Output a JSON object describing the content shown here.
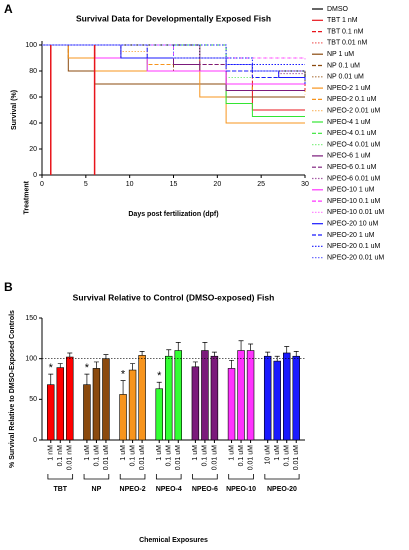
{
  "chart_data": [
    {
      "type": "line",
      "panel": "A",
      "title": "Survival Data for Developmentally Exposed Fish",
      "xlabel": "Days post fertilization (dpf)",
      "ylabel": "Survival (%)",
      "xlim": [
        0,
        30
      ],
      "xticks": [
        0,
        5,
        10,
        15,
        20,
        25,
        30
      ],
      "ylim": [
        0,
        100
      ],
      "yticks": [
        0,
        20,
        40,
        60,
        80,
        100
      ],
      "treatment": {
        "label": "Treatment",
        "x": [
          1,
          6
        ],
        "color": "#e8141b"
      },
      "step": true,
      "x": [
        0,
        3,
        6,
        9,
        12,
        15,
        18,
        21,
        24,
        27,
        30
      ],
      "series": [
        {
          "name": "DMSO",
          "color": "#000000",
          "style": "solid",
          "values": [
            100,
            100,
            100,
            100,
            100,
            100,
            90,
            85,
            80,
            80,
            72
          ]
        },
        {
          "name": "TBT 1 nM",
          "color": "#e8141b",
          "style": "solid",
          "values": [
            100,
            100,
            90,
            90,
            90,
            90,
            80,
            70,
            50,
            50,
            50
          ]
        },
        {
          "name": "TBT 0.1 nM",
          "color": "#e8141b",
          "style": "dashed",
          "values": [
            100,
            100,
            90,
            90,
            90,
            80,
            80,
            80,
            70,
            70,
            65
          ]
        },
        {
          "name": "TBT 0.01 nM",
          "color": "#f06a6a",
          "style": "dotted",
          "values": [
            100,
            100,
            100,
            90,
            90,
            90,
            90,
            80,
            80,
            75,
            75
          ]
        },
        {
          "name": "NP 1 uM",
          "color": "#8b4a0e",
          "style": "solid",
          "values": [
            100,
            80,
            70,
            70,
            70,
            70,
            70,
            60,
            60,
            60,
            60
          ]
        },
        {
          "name": "NP 0.1 uM",
          "color": "#8b4a0e",
          "style": "dashed",
          "values": [
            100,
            90,
            90,
            90,
            90,
            80,
            80,
            70,
            65,
            65,
            65
          ]
        },
        {
          "name": "NP 0.01 uM",
          "color": "#b07a45",
          "style": "dotted",
          "values": [
            100,
            100,
            90,
            90,
            90,
            90,
            85,
            80,
            75,
            75,
            70
          ]
        },
        {
          "name": "NPEO-2 1 uM",
          "color": "#f7941d",
          "style": "solid",
          "values": [
            100,
            90,
            80,
            80,
            80,
            80,
            60,
            40,
            40,
            40,
            40
          ]
        },
        {
          "name": "NPEO-2 0.1 uM",
          "color": "#f7941d",
          "style": "dashed",
          "values": [
            100,
            100,
            90,
            90,
            85,
            85,
            80,
            70,
            65,
            65,
            62
          ]
        },
        {
          "name": "NPEO-2 0.01 uM",
          "color": "#f9b865",
          "style": "dotted",
          "values": [
            100,
            100,
            100,
            95,
            90,
            90,
            85,
            80,
            80,
            80,
            78
          ]
        },
        {
          "name": "NPEO-4 1 uM",
          "color": "#33e533",
          "style": "solid",
          "values": [
            100,
            100,
            90,
            90,
            80,
            80,
            80,
            55,
            45,
            45,
            45
          ]
        },
        {
          "name": "NPEO-4 0.1 uM",
          "color": "#33e533",
          "style": "dashed",
          "values": [
            100,
            100,
            100,
            100,
            100,
            100,
            100,
            90,
            90,
            90,
            90
          ]
        },
        {
          "name": "NPEO-4 0.01 uM",
          "color": "#88f088",
          "style": "dotted",
          "values": [
            100,
            100,
            100,
            90,
            90,
            90,
            80,
            75,
            75,
            75,
            75
          ]
        },
        {
          "name": "NPEO-6 1 uM",
          "color": "#7b1a7b",
          "style": "solid",
          "values": [
            100,
            100,
            90,
            90,
            90,
            85,
            80,
            65,
            65,
            65,
            65
          ]
        },
        {
          "name": "NPEO-6 0.1 uM",
          "color": "#7b1a7b",
          "style": "dashed",
          "values": [
            100,
            100,
            100,
            90,
            90,
            90,
            85,
            85,
            80,
            80,
            80
          ]
        },
        {
          "name": "NPEO-6 0.01 uM",
          "color": "#a65ca6",
          "style": "dotted",
          "values": [
            100,
            100,
            100,
            100,
            90,
            90,
            90,
            80,
            80,
            78,
            78
          ]
        },
        {
          "name": "NPEO-10 1 uM",
          "color": "#ff33ff",
          "style": "solid",
          "values": [
            100,
            100,
            90,
            90,
            80,
            80,
            80,
            70,
            70,
            70,
            70
          ]
        },
        {
          "name": "NPEO-10 0.1 uM",
          "color": "#ff33ff",
          "style": "dashed",
          "values": [
            100,
            100,
            100,
            100,
            100,
            90,
            90,
            90,
            90,
            90,
            90
          ]
        },
        {
          "name": "NPEO-10 0.01 uM",
          "color": "#ff88ff",
          "style": "dotted",
          "values": [
            100,
            100,
            100,
            100,
            100,
            100,
            90,
            90,
            90,
            90,
            88
          ]
        },
        {
          "name": "NPEO-20 10 uM",
          "color": "#1a1aff",
          "style": "solid",
          "values": [
            100,
            100,
            100,
            90,
            90,
            90,
            90,
            85,
            80,
            75,
            75
          ]
        },
        {
          "name": "NPEO-20 1 uM",
          "color": "#1a1aff",
          "style": "dashed",
          "values": [
            100,
            100,
            100,
            100,
            90,
            90,
            90,
            80,
            75,
            75,
            70
          ]
        },
        {
          "name": "NPEO-20 0.1 uM",
          "color": "#1a1aff",
          "style": "dotted",
          "values": [
            100,
            100,
            100,
            100,
            100,
            100,
            100,
            90,
            85,
            85,
            85
          ]
        },
        {
          "name": "NPEO-20 0.01 uM",
          "color": "#7070ff",
          "style": "dotted",
          "values": [
            100,
            100,
            100,
            100,
            100,
            90,
            90,
            85,
            80,
            80,
            80
          ]
        }
      ]
    },
    {
      "type": "bar",
      "panel": "B",
      "title": "Survival Relative to Control (DMSO-exposed) Fish",
      "xlabel": "Chemical Exposures",
      "ylabel": "% Survival Relative to DMSO-Exposed Controls",
      "ylim": [
        0,
        150
      ],
      "yticks": [
        0,
        50,
        100,
        150
      ],
      "reference_line": 100,
      "groups": [
        {
          "name": "TBT",
          "color": "#ff0000",
          "categories": [
            "1 nM",
            "0.1 nM",
            "0.01 nM"
          ],
          "values": [
            68,
            89,
            102
          ],
          "errors": [
            13,
            5,
            5
          ],
          "markers": [
            "*",
            null,
            null
          ]
        },
        {
          "name": "NP",
          "color": "#8b4a0e",
          "categories": [
            "1 uM",
            "0.1 uM",
            "0.01 uM"
          ],
          "values": [
            68,
            88,
            100
          ],
          "errors": [
            13,
            8,
            5
          ],
          "markers": [
            "*",
            null,
            null
          ]
        },
        {
          "name": "NPEO-2",
          "color": "#f7941d",
          "categories": [
            "1 uM",
            "0.1 uM",
            "0.01 uM"
          ],
          "values": [
            56,
            86,
            104
          ],
          "errors": [
            17,
            8,
            5
          ],
          "markers": [
            "*",
            null,
            null
          ]
        },
        {
          "name": "NPEO-4",
          "color": "#33ff33",
          "categories": [
            "1 uM",
            "0.1 uM",
            "0.01 uM"
          ],
          "values": [
            63,
            103,
            110
          ],
          "errors": [
            8,
            8,
            10
          ],
          "markers": [
            "*",
            null,
            null
          ]
        },
        {
          "name": "NPEO-6",
          "color": "#7b1a7b",
          "categories": [
            "1 uM",
            "0.1 uM",
            "0.01 uM"
          ],
          "values": [
            90,
            110,
            103
          ],
          "errors": [
            6,
            10,
            5
          ],
          "markers": [
            null,
            null,
            null
          ]
        },
        {
          "name": "NPEO-10",
          "color": "#ff33ff",
          "categories": [
            "1 uM",
            "0.1 uM",
            "0.01 uM"
          ],
          "values": [
            88,
            110,
            110
          ],
          "errors": [
            10,
            12,
            8
          ],
          "markers": [
            null,
            null,
            null
          ]
        },
        {
          "name": "NPEO-20",
          "color": "#1a1aff",
          "categories": [
            "10 uM",
            "1 uM",
            "0.1 uM",
            "0.01 uM"
          ],
          "values": [
            103,
            97,
            107,
            103
          ],
          "errors": [
            5,
            6,
            8,
            6
          ],
          "markers": [
            null,
            null,
            null,
            null
          ]
        }
      ]
    }
  ]
}
